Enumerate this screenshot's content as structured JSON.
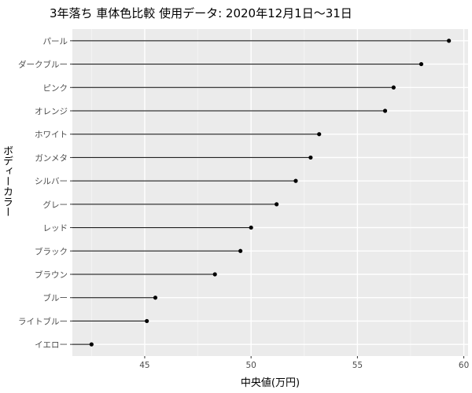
{
  "chart_data": {
    "type": "lollipop",
    "title": "3年落ち 車体色比較 使用データ: 2020年12月1日～31日",
    "xlabel": "中央値(万円)",
    "ylabel": "ボディーカラー",
    "xlim": [
      41.6,
      60.2
    ],
    "xticks": [
      45,
      50,
      55,
      60
    ],
    "grid": true,
    "legend": "none",
    "colors": {
      "panel": "#ebebeb",
      "grid_major": "#ffffff",
      "grid_minor": "#f5f5f5",
      "mark": "#000000"
    },
    "categories": [
      "パール",
      "ダークブルー",
      "ピンク",
      "オレンジ",
      "ホワイト",
      "ガンメタ",
      "シルバー",
      "グレー",
      "レッド",
      "ブラック",
      "ブラウン",
      "ブルー",
      "ライトブルー",
      "イエロー"
    ],
    "values": [
      59.3,
      58.0,
      56.7,
      56.3,
      53.2,
      52.8,
      52.1,
      51.2,
      50.0,
      49.5,
      48.3,
      45.5,
      45.1,
      42.5
    ]
  }
}
